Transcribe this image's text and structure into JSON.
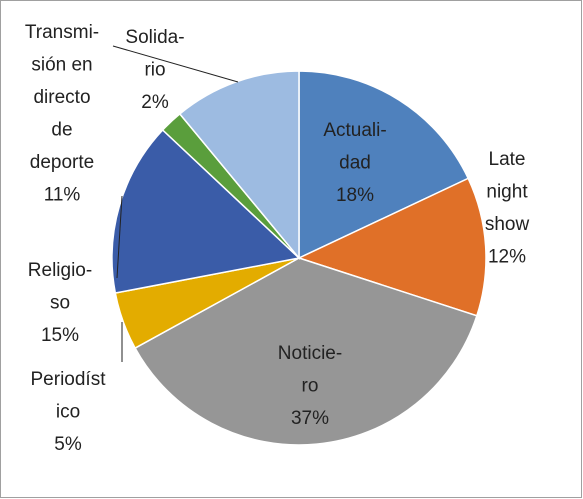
{
  "chart_data": {
    "type": "pie",
    "categories": [
      [
        "Actuali-",
        "dad"
      ],
      [
        "Late",
        "night",
        "show"
      ],
      [
        "Noticie-",
        "ro"
      ],
      [
        "Periodíst",
        "ico"
      ],
      [
        "Religio-",
        "so"
      ],
      [
        "Solida-",
        "rio"
      ],
      [
        "Transmi-",
        "sión en",
        "directo",
        "de",
        "deporte"
      ]
    ],
    "values": [
      18,
      12,
      37,
      5,
      15,
      2,
      11
    ],
    "value_labels": [
      "18%",
      "12%",
      "37%",
      "5%",
      "15%",
      "2%",
      "11%"
    ],
    "colors": [
      "#4f81bd",
      "#e07028",
      "#969696",
      "#e3ac00",
      "#3a5ca8",
      "#5a9e3c",
      "#9dbbe1"
    ]
  }
}
